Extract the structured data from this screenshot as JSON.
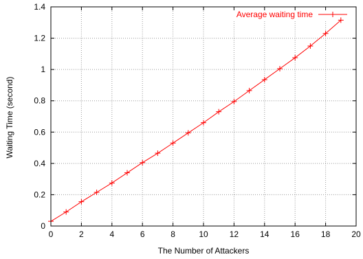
{
  "chart_data": {
    "type": "line",
    "title": "",
    "xlabel": "The Number of Attackers",
    "ylabel": "Waiting Time (second)",
    "xlim": [
      0,
      20
    ],
    "ylim": [
      0,
      1.4
    ],
    "x_ticks": [
      0,
      2,
      4,
      6,
      8,
      10,
      12,
      14,
      16,
      18,
      20
    ],
    "x_tick_labels": [
      "0",
      "2",
      "4",
      "6",
      "8",
      "10",
      "12",
      "14",
      "16",
      "18",
      "20"
    ],
    "y_ticks": [
      0,
      0.2,
      0.4,
      0.6,
      0.8,
      1.0,
      1.2,
      1.4
    ],
    "y_tick_labels": [
      "0",
      "0.2",
      "0.4",
      "0.6",
      "0.8",
      "1",
      "1.2",
      "1.4"
    ],
    "grid": true,
    "legend_position": "top-right",
    "series": [
      {
        "name": "Average waiting time",
        "color": "#ff0000",
        "marker": "plus",
        "x": [
          0,
          1,
          2,
          3,
          4,
          5,
          6,
          7,
          8,
          9,
          10,
          11,
          12,
          13,
          14,
          15,
          16,
          17,
          18,
          19
        ],
        "y": [
          0.03,
          0.09,
          0.155,
          0.215,
          0.275,
          0.34,
          0.405,
          0.465,
          0.53,
          0.595,
          0.66,
          0.73,
          0.795,
          0.865,
          0.935,
          1.005,
          1.075,
          1.15,
          1.23,
          1.315
        ]
      }
    ]
  }
}
